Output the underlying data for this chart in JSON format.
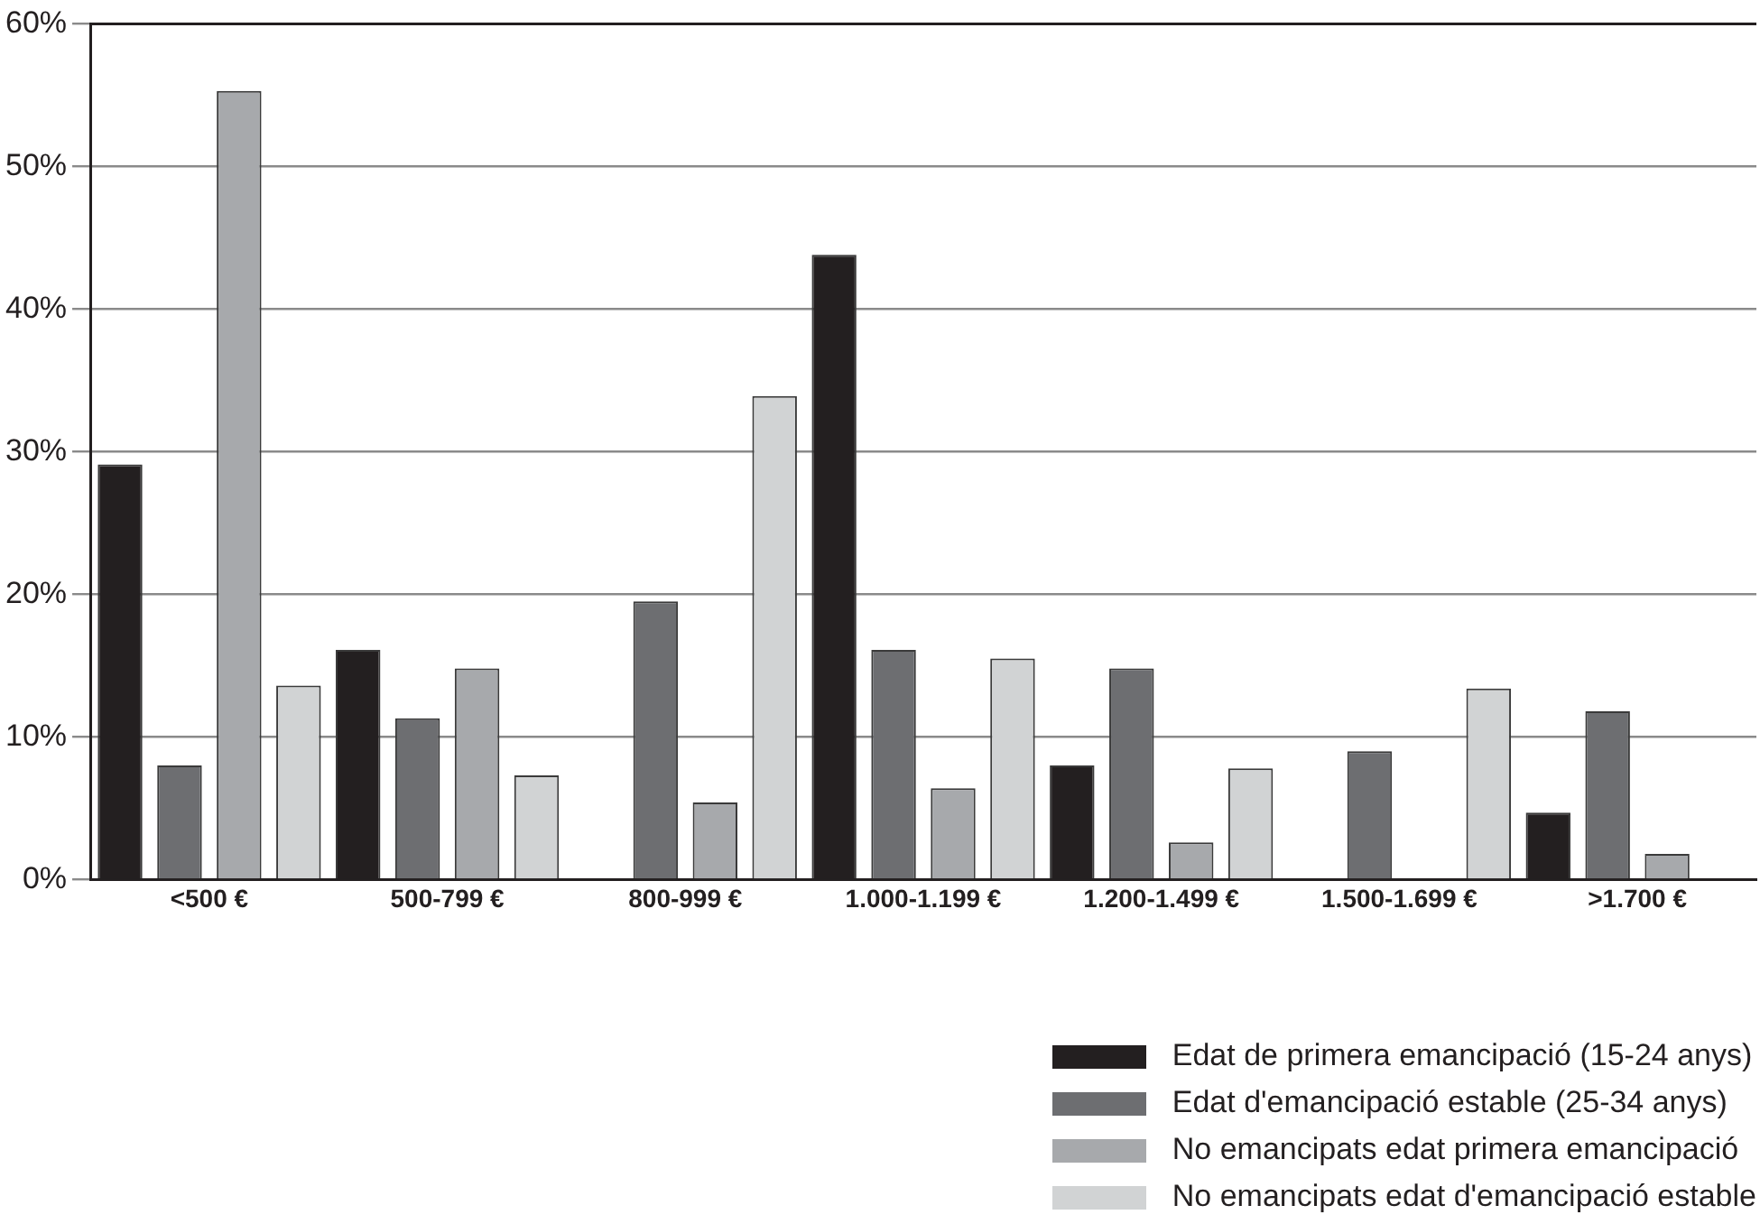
{
  "chart_data": {
    "type": "bar",
    "categories": [
      "<500 €",
      "500-799 €",
      "800-999 €",
      "1.000-1.199 €",
      "1.200-1.499 €",
      "1.500-1.699 €",
      ">1.700 €"
    ],
    "series": [
      {
        "name": "Edat de primera emancipació (15-24 anys)",
        "color": "#231f20",
        "values": [
          29.1,
          16.1,
          null,
          43.8,
          8.0,
          null,
          4.7
        ]
      },
      {
        "name": "Edat d'emancipació estable (25-34 anys)",
        "color": "#6d6e71",
        "values": [
          8.0,
          11.3,
          19.5,
          16.1,
          14.8,
          9.0,
          11.8
        ]
      },
      {
        "name": "No emancipats edat primera emancipació",
        "color": "#a7a9ac",
        "values": [
          55.3,
          14.8,
          5.4,
          6.4,
          2.6,
          null,
          1.8
        ]
      },
      {
        "name": "No emancipats edat d'emancipació estable",
        "color": "#d1d3d4",
        "values": [
          13.6,
          7.3,
          33.9,
          15.5,
          7.8,
          13.4,
          null
        ]
      }
    ],
    "ylim": [
      0,
      60
    ],
    "yticks": [
      {
        "value": 0,
        "label": "0%"
      },
      {
        "value": 10,
        "label": "10%"
      },
      {
        "value": 20,
        "label": "20%"
      },
      {
        "value": 30,
        "label": "30%"
      },
      {
        "value": 40,
        "label": "40%"
      },
      {
        "value": 50,
        "label": "50%"
      },
      {
        "value": 60,
        "label": "60%"
      }
    ],
    "grid": "y",
    "legend": "bottom right"
  }
}
